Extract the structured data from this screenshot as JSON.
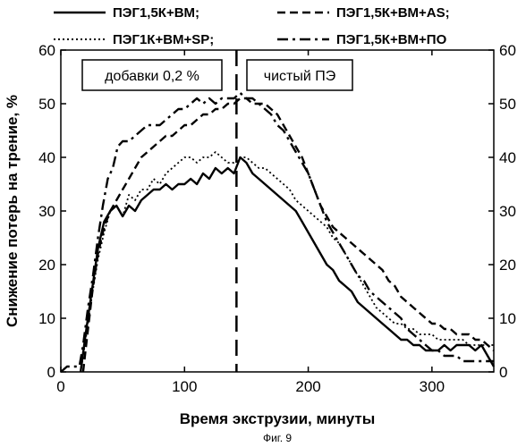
{
  "chart_data": {
    "type": "line",
    "xlabel": "Время экструзии, минуты",
    "ylabel": "Снижение потерь на трение, %",
    "xlim": [
      0,
      350
    ],
    "ylim": [
      0,
      60
    ],
    "x_ticks": [
      "0",
      "100",
      "200",
      "300"
    ],
    "y_ticks": [
      "0",
      "10",
      "20",
      "30",
      "40",
      "50",
      "60"
    ],
    "grid": false,
    "legend_position": "top",
    "annotations": {
      "left_box": "добавки 0,2 %",
      "right_box": "чистый ПЭ",
      "divider_x": 142
    },
    "caption": "Фиг. 9",
    "series": [
      {
        "name": "ПЭГ1,5К+ВМ;",
        "style": "solid",
        "x": [
          16,
          20,
          25,
          30,
          35,
          40,
          45,
          50,
          55,
          60,
          65,
          70,
          75,
          80,
          85,
          90,
          95,
          100,
          105,
          110,
          115,
          120,
          125,
          130,
          135,
          140,
          145,
          150,
          155,
          160,
          165,
          170,
          175,
          180,
          185,
          190,
          195,
          200,
          205,
          210,
          215,
          220,
          225,
          230,
          235,
          240,
          245,
          250,
          255,
          260,
          265,
          270,
          275,
          280,
          285,
          290,
          295,
          300,
          305,
          310,
          315,
          320,
          325,
          330,
          335,
          340,
          345,
          350
        ],
        "y": [
          0,
          7,
          15,
          23,
          28,
          30,
          31,
          29,
          31,
          30,
          32,
          33,
          34,
          34,
          35,
          34,
          35,
          35,
          36,
          35,
          37,
          36,
          38,
          37,
          38,
          37,
          40,
          39,
          37,
          36,
          35,
          34,
          33,
          32,
          31,
          30,
          28,
          26,
          24,
          22,
          20,
          19,
          17,
          16,
          15,
          13,
          12,
          11,
          10,
          9,
          8,
          7,
          6,
          6,
          5,
          5,
          4,
          4,
          4,
          5,
          4,
          5,
          5,
          5,
          4,
          5,
          3,
          1
        ]
      },
      {
        "name": "ПЭГ1,5К+ВМ+AS;",
        "style": "dashed",
        "x": [
          18,
          22,
          26,
          30,
          35,
          40,
          45,
          50,
          55,
          60,
          65,
          70,
          75,
          80,
          85,
          90,
          95,
          100,
          105,
          110,
          115,
          120,
          125,
          130,
          135,
          140,
          145,
          150,
          155,
          160,
          165,
          170,
          175,
          180,
          185,
          190,
          195,
          200,
          205,
          210,
          215,
          220,
          225,
          230,
          235,
          240,
          245,
          250,
          255,
          260,
          265,
          270,
          275,
          280,
          285,
          290,
          295,
          300,
          305,
          310,
          315,
          320,
          325,
          330,
          335,
          340,
          345,
          350
        ],
        "y": [
          0,
          8,
          16,
          22,
          27,
          30,
          32,
          34,
          36,
          38,
          40,
          41,
          42,
          43,
          44,
          44,
          45,
          46,
          46,
          47,
          48,
          48,
          49,
          49,
          50,
          50,
          51,
          51,
          50,
          50,
          50,
          49,
          48,
          46,
          44,
          42,
          40,
          37,
          34,
          31,
          29,
          27,
          26,
          25,
          24,
          23,
          22,
          21,
          20,
          19,
          17,
          16,
          14,
          13,
          12,
          11,
          10,
          9,
          9,
          8,
          8,
          7,
          7,
          7,
          6,
          6,
          5,
          4
        ]
      },
      {
        "name": "ПЭГ1К+ВМ+SP;",
        "style": "dotted",
        "x": [
          16,
          20,
          25,
          30,
          35,
          40,
          45,
          50,
          55,
          60,
          65,
          70,
          75,
          80,
          85,
          90,
          95,
          100,
          105,
          110,
          115,
          120,
          125,
          130,
          135,
          140,
          145,
          150,
          155,
          160,
          165,
          170,
          175,
          180,
          185,
          190,
          195,
          200,
          205,
          210,
          215,
          220,
          225,
          230,
          235,
          240,
          245,
          250,
          255,
          260,
          265,
          270,
          275,
          280,
          285,
          290,
          295,
          300,
          305,
          310,
          315,
          320,
          325,
          330,
          335,
          340,
          345,
          350
        ],
        "y": [
          0,
          6,
          14,
          21,
          26,
          30,
          31,
          29,
          33,
          32,
          34,
          34,
          36,
          35,
          37,
          38,
          39,
          40,
          40,
          39,
          40,
          40,
          41,
          40,
          39,
          39,
          40,
          40,
          39,
          38,
          38,
          37,
          36,
          35,
          34,
          32,
          31,
          30,
          29,
          28,
          27,
          25,
          24,
          22,
          20,
          18,
          16,
          14,
          12,
          11,
          10,
          9,
          9,
          8,
          8,
          7,
          7,
          7,
          6,
          6,
          6,
          6,
          6,
          5,
          5,
          5,
          5,
          5
        ]
      },
      {
        "name": "ПЭГ1,5К+ВМ+ПО",
        "style": "dashdot",
        "x": [
          0,
          5,
          10,
          15,
          18,
          22,
          26,
          30,
          34,
          38,
          42,
          46,
          50,
          55,
          60,
          65,
          70,
          75,
          80,
          85,
          90,
          95,
          100,
          105,
          110,
          115,
          120,
          125,
          130,
          135,
          140,
          145,
          150,
          155,
          160,
          165,
          170,
          175,
          180,
          185,
          190,
          195,
          200,
          205,
          210,
          215,
          220,
          225,
          230,
          235,
          240,
          245,
          250,
          255,
          260,
          265,
          270,
          275,
          280,
          285,
          290,
          295,
          300,
          305,
          310,
          315,
          320,
          325,
          330,
          335,
          340,
          345,
          350
        ],
        "y": [
          0,
          1,
          1,
          1,
          5,
          12,
          18,
          25,
          31,
          36,
          38,
          42,
          43,
          43,
          44,
          45,
          46,
          46,
          46,
          47,
          48,
          49,
          49,
          50,
          51,
          50,
          51,
          50,
          51,
          51,
          51,
          52,
          51,
          51,
          50,
          49,
          48,
          46,
          45,
          43,
          41,
          39,
          37,
          34,
          31,
          28,
          26,
          24,
          22,
          20,
          18,
          17,
          15,
          14,
          13,
          12,
          11,
          10,
          8,
          7,
          6,
          5,
          4,
          4,
          3,
          3,
          3,
          2,
          2,
          2,
          2,
          2,
          2
        ]
      }
    ]
  }
}
